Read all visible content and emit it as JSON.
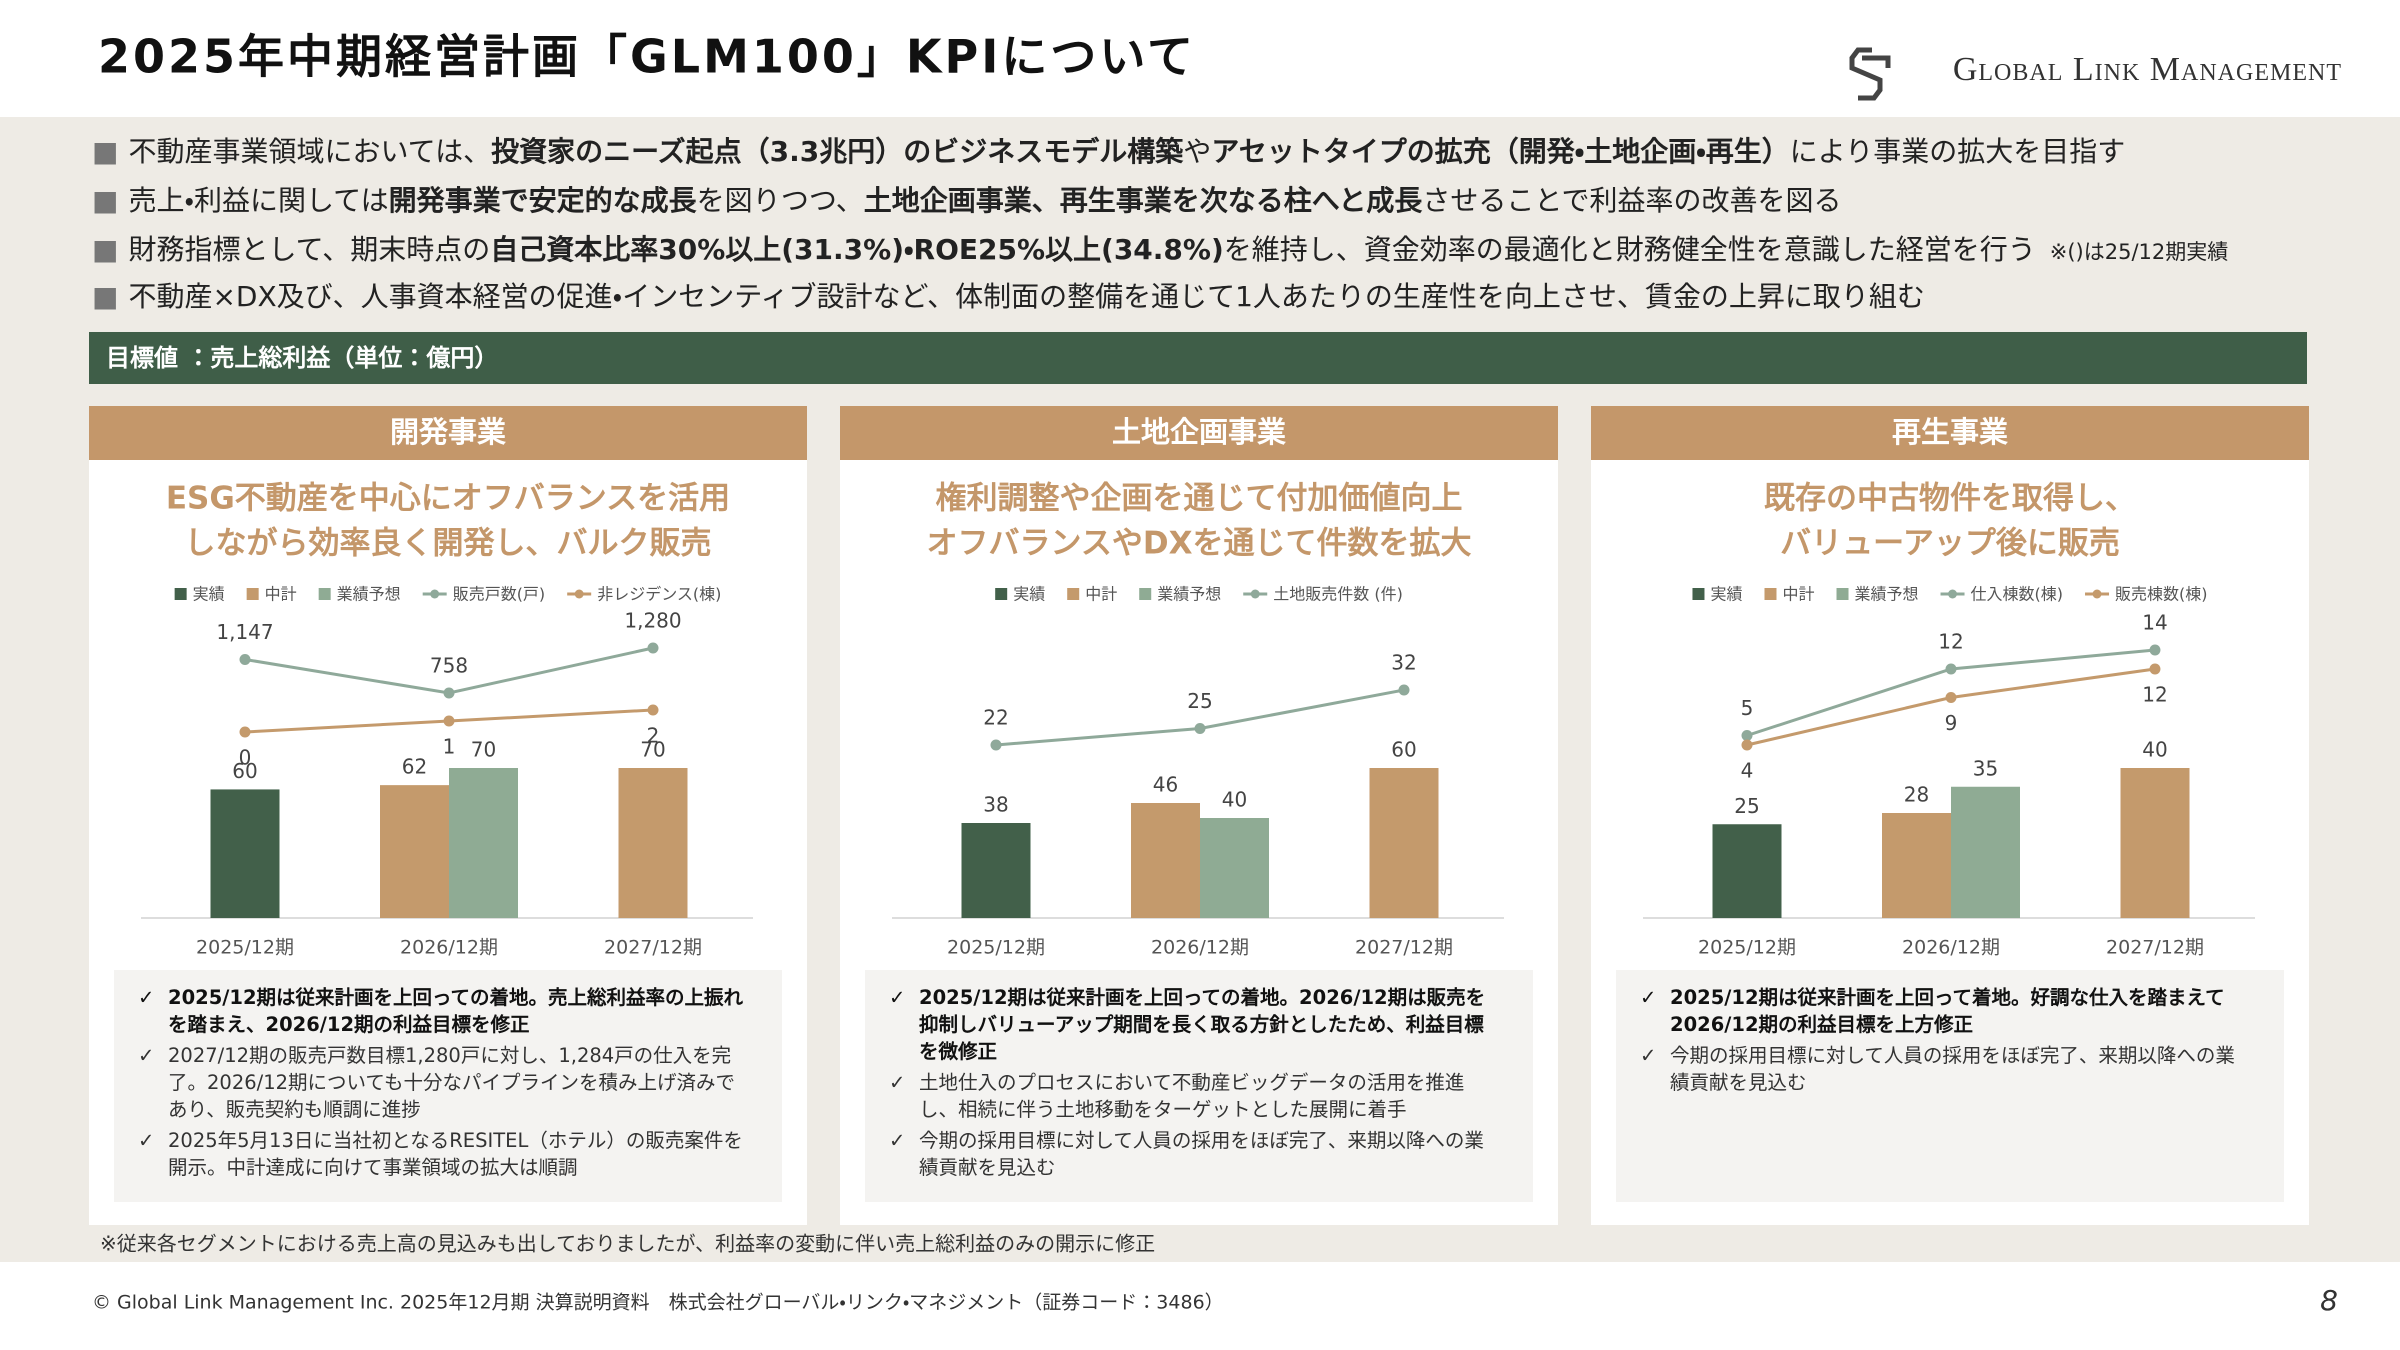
{
  "header": {
    "title": "2025年中期経営計画「GLM100」KPIについて",
    "logo": "Global Link Management"
  },
  "bullets": [
    [
      "不動産事業領域においては、",
      "投資家のニーズ起点（3.3兆円）のビジネスモデル構築",
      "や",
      "アセットタイプの拡充（開発・土地企画・再生）",
      "により事業の拡大を目指す"
    ],
    [
      "売上・利益に関しては",
      "開発事業で安定的な成長",
      "を図りつつ、",
      "土地企画事業、再生事業を次なる柱へと成長",
      "させることで利益率の改善を図る"
    ],
    [
      "財務指標として、期末時点の",
      "自己資本比率30%以上(31.3%)・ROE25%以上(34.8%)",
      "を維持し、資金効率の最適化と財務健全性を意識した経営を行う"
    ],
    [
      "不動産×DX及び、人事資本経営の促進・インセンティブ設計など、体制面の整備を通じて1人あたりの生産性を向上させ、賃金の上昇に取り組む"
    ]
  ],
  "bullet_note": "※()は25/12期実績",
  "target_label": "目標値 ：売上総利益（単位：億円）",
  "chart_data": [
    {
      "type": "bar",
      "title": "開発事業",
      "subtitle": [
        "ESG不動産を中心にオフバランスを活用",
        "しながら効率良く開発し、バルク販売"
      ],
      "categories": [
        "2025/12期",
        "2026/12期",
        "2027/12期"
      ],
      "series": [
        {
          "name": "実績",
          "type": "bar",
          "color": "#42604a",
          "values": [
            60,
            null,
            null
          ]
        },
        {
          "name": "中計",
          "type": "bar",
          "color": "#c49a6c",
          "values": [
            null,
            62,
            70
          ]
        },
        {
          "name": "業績予想",
          "type": "bar",
          "color": "#8fab94",
          "values": [
            null,
            70,
            null
          ]
        },
        {
          "name": "販売戸数(戸)",
          "type": "line",
          "color": "#8fa99a",
          "values": [
            1147,
            758,
            1280
          ],
          "value_labels": [
            "1,147",
            "758",
            "1,280"
          ]
        },
        {
          "name": "非レジデンス(棟)",
          "type": "line",
          "color": "#c49a6c",
          "values": [
            0,
            1,
            2
          ]
        }
      ]
    },
    {
      "type": "bar",
      "title": "土地企画事業",
      "subtitle": [
        "権利調整や企画を通じて付加価値向上",
        "オフバランスやDXを通じて件数を拡大"
      ],
      "categories": [
        "2025/12期",
        "2026/12期",
        "2027/12期"
      ],
      "series": [
        {
          "name": "実績",
          "type": "bar",
          "color": "#42604a",
          "values": [
            38,
            null,
            null
          ]
        },
        {
          "name": "中計",
          "type": "bar",
          "color": "#c49a6c",
          "values": [
            null,
            46,
            60
          ]
        },
        {
          "name": "業績予想",
          "type": "bar",
          "color": "#8fab94",
          "values": [
            null,
            40,
            null
          ]
        },
        {
          "name": "土地販売件数 (件)",
          "type": "line",
          "color": "#8fa99a",
          "values": [
            22,
            25,
            32
          ]
        }
      ]
    },
    {
      "type": "bar",
      "title": "再生事業",
      "subtitle": [
        "既存の中古物件を取得し、",
        "バリューアップ後に販売"
      ],
      "categories": [
        "2025/12期",
        "2026/12期",
        "2027/12期"
      ],
      "series": [
        {
          "name": "実績",
          "type": "bar",
          "color": "#42604a",
          "values": [
            25,
            null,
            null
          ]
        },
        {
          "name": "中計",
          "type": "bar",
          "color": "#c49a6c",
          "values": [
            null,
            28,
            40
          ]
        },
        {
          "name": "業績予想",
          "type": "bar",
          "color": "#8fab94",
          "values": [
            null,
            35,
            null
          ]
        },
        {
          "name": "仕入棟数(棟)",
          "type": "line",
          "color": "#8fa99a",
          "values": [
            5,
            12,
            14
          ]
        },
        {
          "name": "販売棟数(棟)",
          "type": "line",
          "color": "#c49a6c",
          "values": [
            4,
            9,
            12
          ]
        }
      ]
    }
  ],
  "notes": [
    [
      "2025/12期は従来計画を上回っての着地。売上総利益率の上振れを踏まえ、2026/12期の利益目標を修正",
      "2027/12期の販売戸数目標1,280戸に対し、1,284戸の仕入を完了。2026/12期についても十分なパイプラインを積み上げ済みであり、販売契約も順調に進捗",
      "2025年5月13日に当社初となるRESITEL（ホテル）の販売案件を開示。中計達成に向けて事業領域の拡大は順調"
    ],
    [
      "2025/12期は従来計画を上回っての着地。2026/12期は販売を抑制しバリューアップ期間を長く取る方針としたため、利益目標を微修正",
      "土地仕入のプロセスにおいて不動産ビッグデータの活用を推進し、相続に伴う土地移動をターゲットとした展開に着手",
      "今期の採用目標に対して人員の採用をほぼ完了、来期以降への業績貢献を見込む"
    ],
    [
      "2025/12期は従来計画を上回って着地。好調な仕入を踏まえて2026/12期の利益目標を上方修正",
      "今期の採用目標に対して人員の採用をほぼ完了、来期以降への業績貢献を見込む"
    ]
  ],
  "footnote": "※従来各セグメントにおける売上高の見込みも出しておりましたが、利益率の変動に伴い売上総利益のみの開示に修正",
  "footer": {
    "copyright": "© Global Link Management Inc. 2025年12月期 決算説明資料　株式会社グローバル・リンク・マネジメント（証券コード：3486）",
    "page": 8
  }
}
